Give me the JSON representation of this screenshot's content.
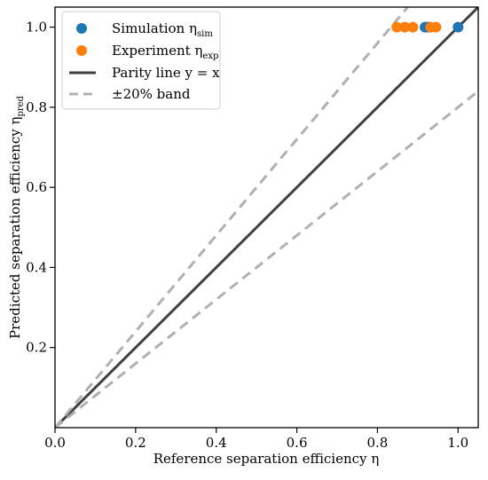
{
  "chart_data": {
    "type": "scatter",
    "xlabel": "Reference separation efficiency η",
    "ylabel": "Predicted separation efficiency η",
    "ylabel_sub": "pred",
    "xlim": [
      0.0,
      1.05
    ],
    "ylim": [
      0.0,
      1.05
    ],
    "x_ticks": [
      0.0,
      0.2,
      0.4,
      0.6,
      0.8,
      1.0
    ],
    "x_tick_labels": [
      "0.0",
      "0.2",
      "0.4",
      "0.6",
      "0.8",
      "1.0"
    ],
    "y_ticks": [
      0.2,
      0.4,
      0.6,
      0.8,
      1.0
    ],
    "y_tick_labels": [
      "0.2",
      "0.4",
      "0.6",
      "0.8",
      "1.0"
    ],
    "grid": false,
    "legend_position": "top-left",
    "series": [
      {
        "name": "Simulation η",
        "name_sub": "sim",
        "kind": "points",
        "color": "#1f77b4",
        "x": [
          0.918,
          0.925,
          0.93,
          1.0
        ],
        "y": [
          1.0,
          1.0,
          1.0,
          1.0
        ]
      },
      {
        "name": "Experiment η",
        "name_sub": "exp",
        "kind": "points",
        "color": "#ff7f0e",
        "x": [
          0.848,
          0.868,
          0.888,
          0.932,
          0.945
        ],
        "y": [
          1.0,
          1.0,
          1.0,
          1.0,
          1.0
        ]
      },
      {
        "name": "Parity line y = x",
        "kind": "line",
        "color": "#404040",
        "style": "solid",
        "x": [
          0.0,
          1.05
        ],
        "y": [
          0.0,
          1.05
        ]
      },
      {
        "name": "±20% band",
        "kind": "line",
        "color": "#b0b0b0",
        "style": "dashed",
        "x": [
          0.0,
          1.05
        ],
        "y": [
          0.0,
          1.26
        ]
      },
      {
        "name": "",
        "kind": "line",
        "color": "#b0b0b0",
        "style": "dashed",
        "x": [
          0.0,
          1.05
        ],
        "y": [
          0.0,
          0.84
        ]
      }
    ]
  }
}
